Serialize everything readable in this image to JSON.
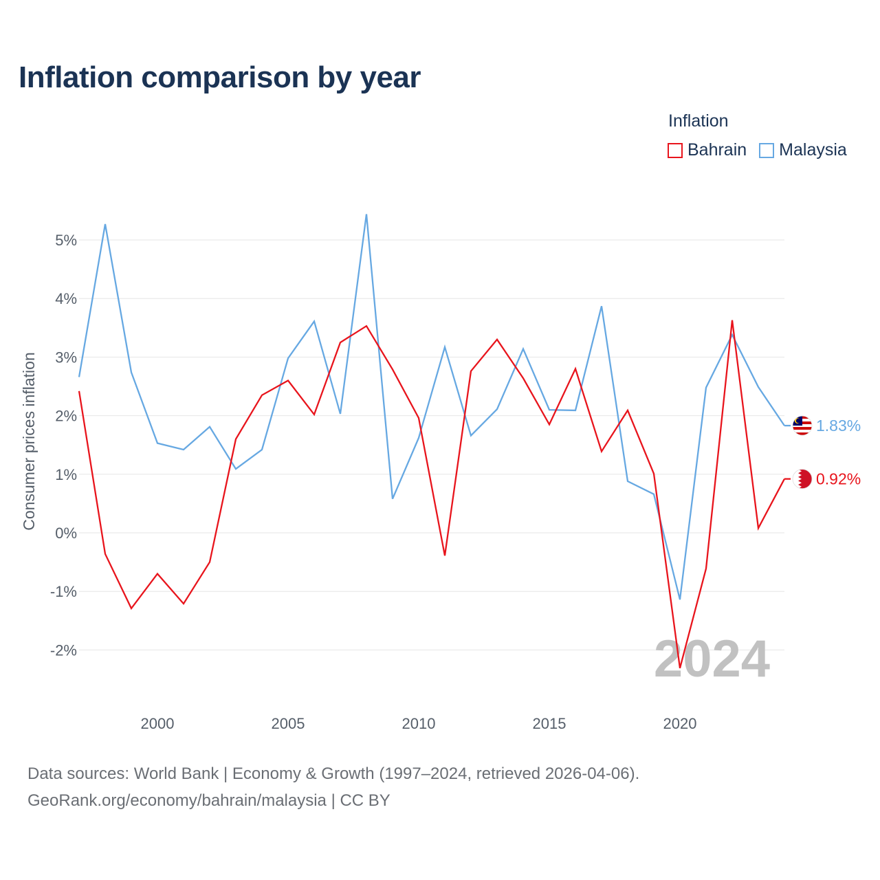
{
  "title": "Inflation comparison by year",
  "legend": {
    "title": "Inflation",
    "items": [
      {
        "name": "Bahrain",
        "color": "#e8141c"
      },
      {
        "name": "Malaysia",
        "color": "#66a8e2"
      }
    ]
  },
  "chart_data": {
    "type": "line",
    "title": "Inflation comparison by year",
    "xlabel": "",
    "ylabel": "Consumer prices inflation",
    "xlim": [
      1997,
      2024
    ],
    "ylim": [
      -2.6,
      5.6
    ],
    "x_ticks": [
      2000,
      2005,
      2010,
      2015,
      2020
    ],
    "y_ticks": [
      {
        "value": 5,
        "label": "5%"
      },
      {
        "value": 4,
        "label": "4%"
      },
      {
        "value": 3,
        "label": "3%"
      },
      {
        "value": 2,
        "label": "2%"
      },
      {
        "value": 1,
        "label": "1%"
      },
      {
        "value": 0,
        "label": "0%"
      },
      {
        "value": -1,
        "label": "-1%"
      },
      {
        "value": -2,
        "label": "-2%"
      }
    ],
    "x": [
      1997,
      1998,
      1999,
      2000,
      2001,
      2002,
      2003,
      2004,
      2005,
      2006,
      2007,
      2008,
      2009,
      2010,
      2011,
      2012,
      2013,
      2014,
      2015,
      2016,
      2017,
      2018,
      2019,
      2020,
      2021,
      2022,
      2023,
      2024
    ],
    "series": [
      {
        "name": "Malaysia",
        "color": "#66a8e2",
        "end_label": "1.83%",
        "values": [
          2.66,
          5.27,
          2.74,
          1.53,
          1.42,
          1.81,
          1.09,
          1.42,
          2.98,
          3.61,
          2.03,
          5.44,
          0.58,
          1.62,
          3.17,
          1.66,
          2.11,
          3.14,
          2.1,
          2.09,
          3.87,
          0.88,
          0.66,
          -1.14,
          2.48,
          3.38,
          2.49,
          1.83
        ]
      },
      {
        "name": "Bahrain",
        "color": "#e8141c",
        "end_label": "0.92%",
        "values": [
          2.42,
          -0.36,
          -1.29,
          -0.7,
          -1.21,
          -0.5,
          1.6,
          2.35,
          2.6,
          2.02,
          3.25,
          3.53,
          2.79,
          1.96,
          -0.39,
          2.76,
          3.3,
          2.64,
          1.85,
          2.8,
          1.39,
          2.09,
          1.01,
          -2.31,
          -0.61,
          3.63,
          0.08,
          0.92
        ]
      }
    ],
    "watermark_year": "2024"
  },
  "footer": {
    "line1": "Data sources: World Bank | Economy & Growth (1997–2024, retrieved 2026-04-06).",
    "line2": "GeoRank.org/economy/bahrain/malaysia | CC BY"
  }
}
